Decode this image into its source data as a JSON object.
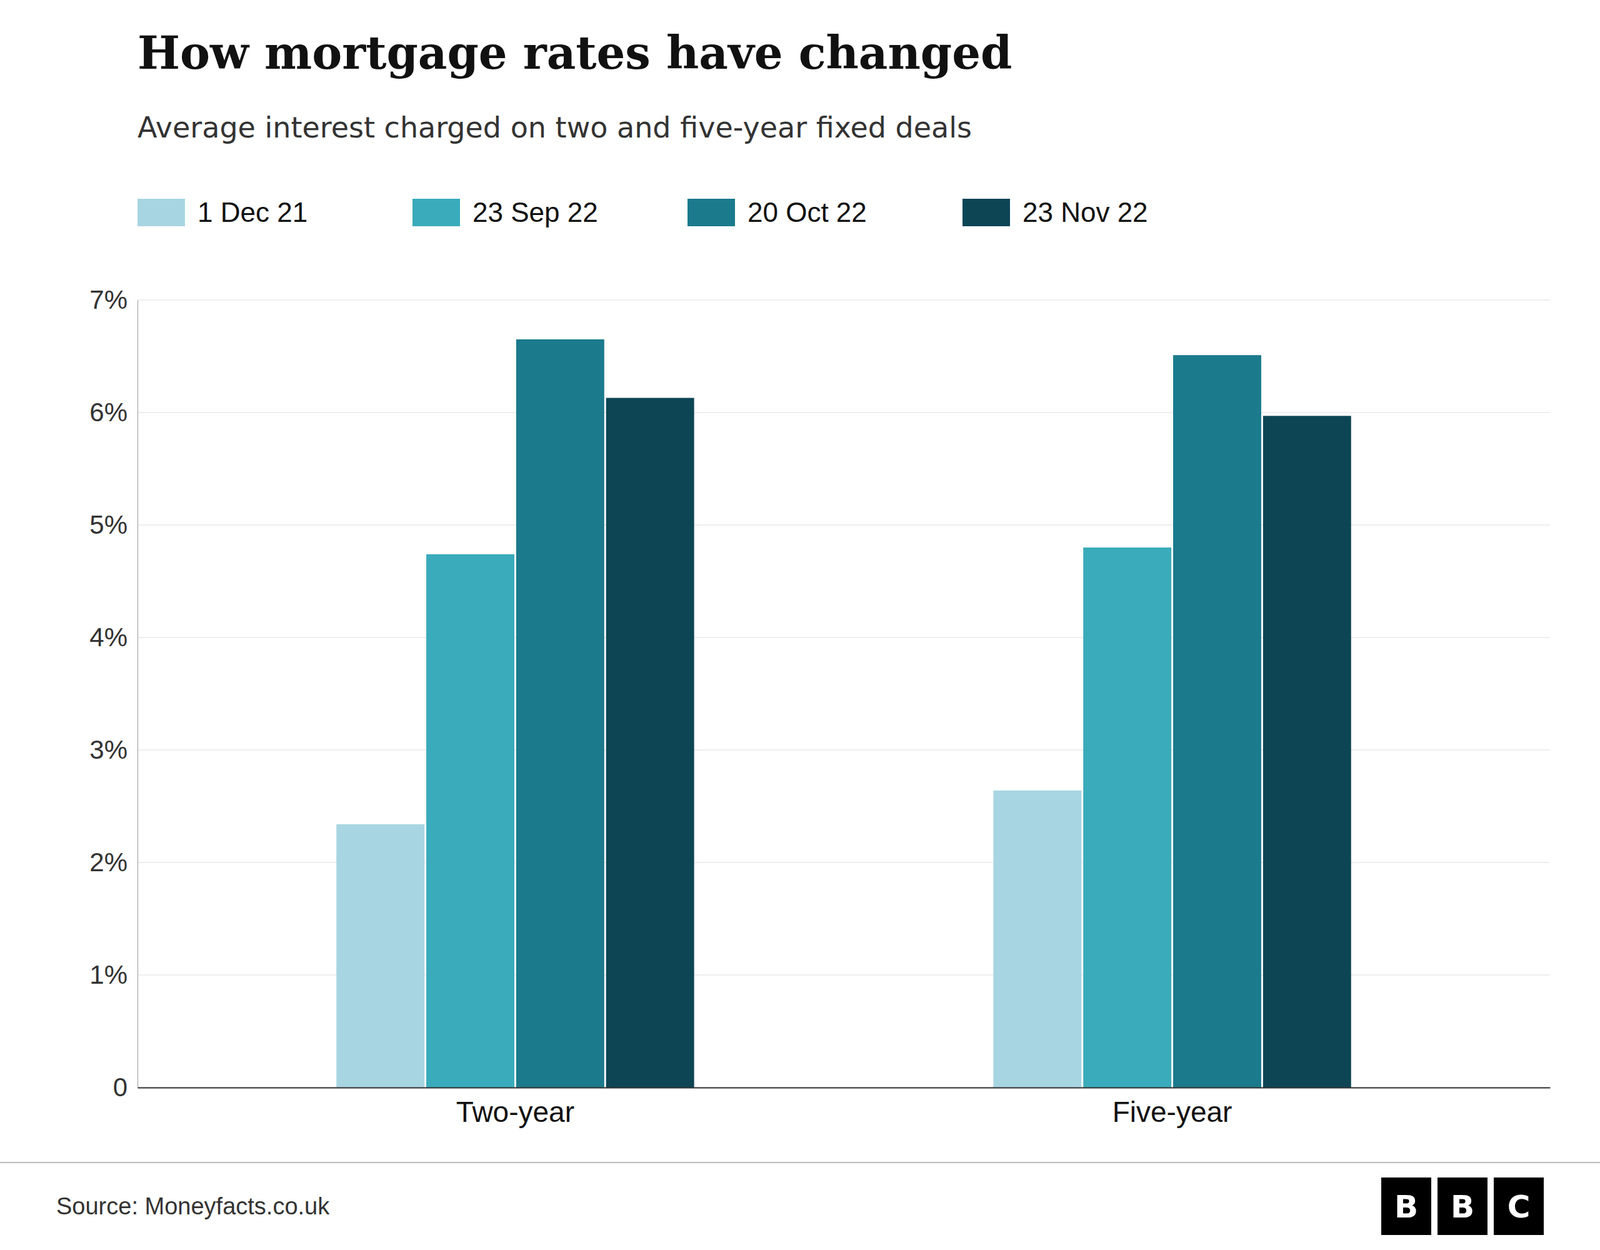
{
  "chart_data": {
    "type": "bar",
    "title": "How mortgage rates have changed",
    "subtitle": "Average interest charged on two and five-year fixed deals",
    "source": "Source: Moneyfacts.co.uk",
    "logo": [
      "B",
      "B",
      "C"
    ],
    "categories": [
      "Two-year",
      "Five-year"
    ],
    "series": [
      {
        "name": "1 Dec 21",
        "color": "#a8d5e2",
        "values": [
          2.34,
          2.64
        ]
      },
      {
        "name": "23 Sep 22",
        "color": "#3aabba",
        "values": [
          4.74,
          4.8
        ]
      },
      {
        "name": "20 Oct 22",
        "color": "#1b7a8c",
        "values": [
          6.65,
          6.51
        ]
      },
      {
        "name": "23 Nov 22",
        "color": "#0d4555",
        "values": [
          6.13,
          5.97
        ]
      }
    ],
    "ylim": [
      0,
      7
    ],
    "yticks": [
      0,
      {
        "value": 1,
        "label": "1%"
      },
      {
        "value": 2,
        "label": "2%"
      },
      {
        "value": 3,
        "label": "3%"
      },
      {
        "value": 4,
        "label": "4%"
      },
      {
        "value": 5,
        "label": "5%"
      },
      {
        "value": 6,
        "label": "6%"
      },
      {
        "value": 7,
        "label": "7%"
      }
    ],
    "grid": true,
    "legend": "top-left"
  }
}
